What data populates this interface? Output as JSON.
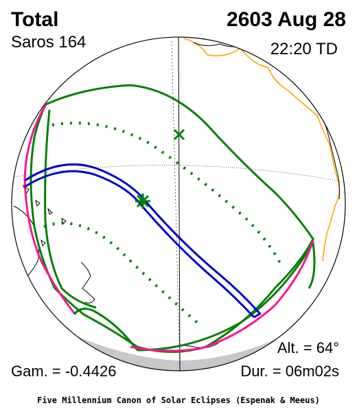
{
  "header": {
    "eclipse_type": "Total",
    "saros": "Saros 164",
    "date": "2603 Aug 28",
    "time": "22:20 TD"
  },
  "stats": {
    "gamma": "Gam. = -0.4426",
    "altitude": "Alt. = 64°",
    "duration": "Dur. = 06m02s"
  },
  "footer": {
    "credit": "Five Millennium Canon of Solar Eclipses (Espenak & Meeus)"
  },
  "colors": {
    "penumbra_limit": "#008000",
    "rise_set_curve": "#ff1493",
    "central_path": "#0000cc",
    "coastline_land": "#000000",
    "coastline_americas": "#ffa500",
    "night_shading": "#c8c8c8"
  },
  "markers": {
    "greatest_eclipse_icon": "star-marker",
    "subsolar_icon": "x-marker"
  }
}
